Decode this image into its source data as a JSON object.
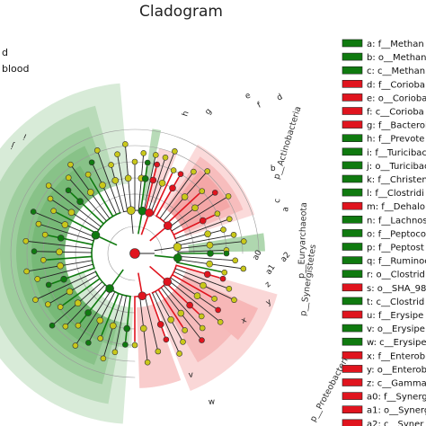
{
  "chart_data": {
    "type": "cladogram",
    "title": "Cladogram",
    "group_labels": [
      "d",
      "blood"
    ],
    "colors": {
      "green": "#0f7a0f",
      "red": "#e0141e",
      "yellow": "#c9c81a",
      "green_shade": "#4ea64e",
      "red_shade": "#f07a7a"
    },
    "phyla": [
      {
        "label": "p__Actinobacteria",
        "group": "red"
      },
      {
        "label": "p__Euryarchaeota",
        "group": "green"
      },
      {
        "label": "p__Synergistetes",
        "group": "red"
      },
      {
        "label": "p__Proteobacteria",
        "group": "red"
      }
    ],
    "clade_letters": [
      "e",
      "f",
      "d",
      "g",
      "h",
      "b",
      "c",
      "a",
      "a0",
      "a1",
      "a2",
      "z",
      "y",
      "x",
      "v",
      "w",
      "j",
      "i"
    ],
    "legend": [
      {
        "key": "a: f__Methan",
        "group": "green"
      },
      {
        "key": "b: o__Methan",
        "group": "green"
      },
      {
        "key": "c: c__Methan",
        "group": "green"
      },
      {
        "key": "d: f__Corioba",
        "group": "red"
      },
      {
        "key": "e: o__Corioba",
        "group": "red"
      },
      {
        "key": "f: c__Corioba",
        "group": "red"
      },
      {
        "key": "g: f__Bacteroi",
        "group": "red"
      },
      {
        "key": "h: f__Prevote",
        "group": "green"
      },
      {
        "key": "i: f__Turicibac",
        "group": "green"
      },
      {
        "key": "j: o__Turicibac",
        "group": "green"
      },
      {
        "key": "k: f__Christen",
        "group": "green"
      },
      {
        "key": "l: f__Clostridi",
        "group": "green"
      },
      {
        "key": "m: f__Dehalo",
        "group": "red"
      },
      {
        "key": "n: f__Lachnos",
        "group": "green"
      },
      {
        "key": "o: f__Peptoco",
        "group": "green"
      },
      {
        "key": "p: f__Peptost",
        "group": "green"
      },
      {
        "key": "q: f__Ruminoc",
        "group": "green"
      },
      {
        "key": "r: o__Clostrid",
        "group": "green"
      },
      {
        "key": "s: o__SHA_98",
        "group": "red"
      },
      {
        "key": "t: c__Clostrid",
        "group": "green"
      },
      {
        "key": "u: f__Erysipe",
        "group": "red"
      },
      {
        "key": "v: o__Erysipe",
        "group": "green"
      },
      {
        "key": "w: c__Erysipe",
        "group": "green"
      },
      {
        "key": "x: f__Enterob",
        "group": "red"
      },
      {
        "key": "y: o__Enterob",
        "group": "red"
      },
      {
        "key": "z: c__Gamma",
        "group": "red"
      },
      {
        "key": "a0: f__Synerg",
        "group": "red"
      },
      {
        "key": "a1: o__Synerg",
        "group": "red"
      },
      {
        "key": "a2: c__Syner",
        "group": "red"
      }
    ]
  }
}
